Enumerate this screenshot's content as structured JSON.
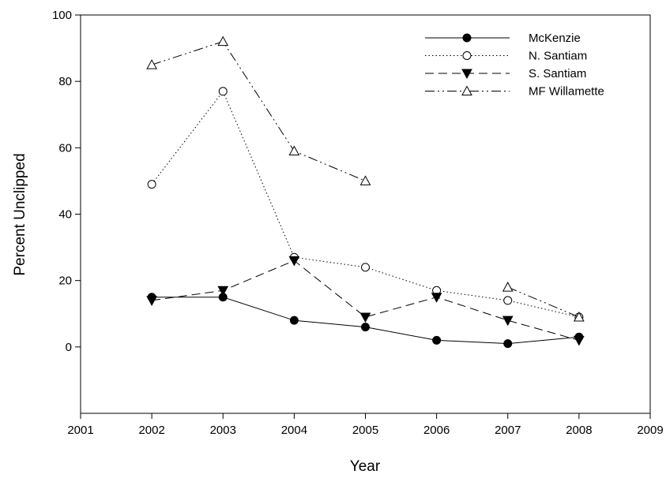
{
  "chart_data": {
    "type": "line",
    "title": "",
    "xlabel": "Year",
    "ylabel": "Percent Unclipped",
    "xlim": [
      2001,
      2009
    ],
    "ylim": [
      -20,
      100
    ],
    "xticks": [
      2001,
      2002,
      2003,
      2004,
      2005,
      2006,
      2007,
      2008,
      2009
    ],
    "yticks": [
      0,
      20,
      40,
      60,
      80,
      100
    ],
    "grid": false,
    "legend_position": "top-right",
    "series": [
      {
        "name": "McKenzie",
        "marker": "filled-circle",
        "line": "solid",
        "points": [
          [
            2002,
            15
          ],
          [
            2003,
            15
          ],
          [
            2004,
            8
          ],
          [
            2005,
            6
          ],
          [
            2006,
            2
          ],
          [
            2007,
            1
          ],
          [
            2008,
            3
          ]
        ]
      },
      {
        "name": "N. Santiam",
        "marker": "open-circle",
        "line": "dotted",
        "points": [
          [
            2002,
            49
          ],
          [
            2003,
            77
          ],
          [
            2004,
            27
          ],
          [
            2005,
            24
          ],
          [
            2006,
            17
          ],
          [
            2007,
            14
          ],
          [
            2008,
            9
          ]
        ]
      },
      {
        "name": "S. Santiam",
        "marker": "filled-triangle-down",
        "line": "dashed",
        "points": [
          [
            2002,
            14
          ],
          [
            2003,
            17
          ],
          [
            2004,
            26
          ],
          [
            2005,
            9
          ],
          [
            2006,
            15
          ],
          [
            2007,
            8
          ],
          [
            2008,
            2
          ]
        ]
      },
      {
        "name": "MF Willamette",
        "marker": "open-triangle-up",
        "line": "dash-dot-dot",
        "segments": [
          [
            [
              2002,
              85
            ],
            [
              2003,
              92
            ],
            [
              2004,
              59
            ],
            [
              2005,
              50
            ]
          ],
          [
            [
              2007,
              18
            ],
            [
              2008,
              9
            ]
          ]
        ]
      }
    ]
  }
}
